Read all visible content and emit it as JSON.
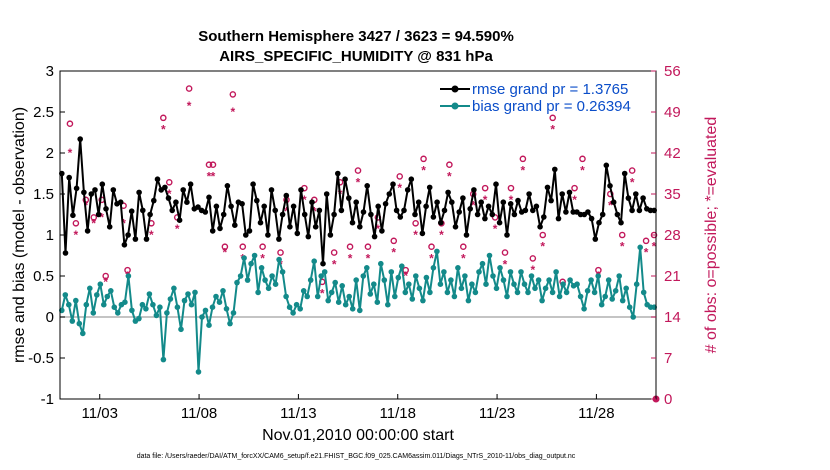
{
  "chart_data": {
    "type": "line",
    "title": "Southern Hemisphere 3427 / 3623 = 94.590%",
    "subtitle": "AIRS_SPECIFIC_HUMIDITY @ 831 hPa",
    "xlabel": "Nov.01,2010 00:00:00 start",
    "ylabel": "rmse and bias (model - observation)",
    "ylabel_right": "# of obs: o=possible; *=evaluated",
    "footnote": "data file: /Users/raeder/DAI/ATM_forcXX/CAM6_setup/f.e21.FHIST_BGC.f09_025.CAM6assim.011/Diags_NTrS_2010-11/obs_diag_output.nc",
    "x_tick_labels": [
      "11/03",
      "11/08",
      "11/13",
      "11/18",
      "11/23",
      "11/28"
    ],
    "x_tick_days": [
      3,
      8,
      13,
      18,
      23,
      28
    ],
    "xlim": [
      1,
      31
    ],
    "ylim": [
      -1,
      3
    ],
    "y_ticks": [
      -1,
      -0.5,
      0,
      0.5,
      1,
      1.5,
      2,
      2.5,
      3
    ],
    "y_tick_labels": [
      "-1",
      "-0.5",
      "0",
      "0.5",
      "1",
      "1.5",
      "2",
      "2.5",
      "3"
    ],
    "ylim_right": [
      0,
      56
    ],
    "y_ticks_right": [
      0,
      7,
      14,
      21,
      28,
      35,
      42,
      49,
      56
    ],
    "y_tick_labels_right": [
      "0",
      "7",
      "14",
      "21",
      "28",
      "35",
      "42",
      "49",
      "56"
    ],
    "legend_position": "top-right",
    "colors": {
      "rmse": "#000000",
      "bias": "#138a8a",
      "obs": "#c2185b",
      "zero_line": "#b0b0b0"
    },
    "series": [
      {
        "name": "rmse grand pr = 1.3765",
        "values": [
          1.75,
          0.78,
          1.7,
          1.24,
          1.57,
          2.17,
          1.52,
          1.05,
          1.5,
          1.55,
          1.25,
          1.62,
          1.32,
          1.1,
          1.55,
          1.38,
          1.4,
          0.88,
          1.0,
          1.29,
          0.95,
          1.52,
          1.3,
          0.95,
          1.25,
          1.42,
          1.68,
          1.55,
          1.58,
          1.45,
          1.3,
          1.4,
          1.18,
          1.55,
          1.4,
          1.62,
          1.32,
          1.34,
          1.3,
          1.28,
          1.46,
          1.05,
          1.35,
          1.08,
          1.25,
          1.6,
          1.35,
          1.12,
          1.4,
          1.38,
          1.0,
          1.05,
          1.62,
          1.42,
          1.15,
          1.35,
          1.0,
          1.55,
          1.3,
          0.95,
          1.25,
          1.48,
          1.1,
          1.35,
          1.02,
          1.55,
          1.25,
          0.98,
          1.4,
          1.1,
          1.3,
          0.65,
          1.5,
          1.0,
          1.25,
          1.75,
          1.3,
          1.68,
          1.45,
          1.15,
          1.4,
          1.1,
          1.28,
          1.6,
          1.25,
          0.98,
          1.35,
          1.05,
          1.38,
          1.5,
          1.62,
          1.3,
          1.22,
          1.3,
          1.55,
          1.68,
          1.25,
          1.4,
          1.02,
          1.35,
          1.58,
          1.22,
          1.4,
          1.15,
          1.3,
          1.52,
          1.4,
          1.1,
          1.28,
          1.45,
          1.0,
          1.32,
          1.55,
          1.25,
          1.4,
          1.2,
          1.35,
          1.25,
          1.62,
          1.15,
          1.4,
          1.0,
          1.38,
          1.25,
          1.42,
          1.28,
          1.3,
          1.5,
          1.3,
          1.35,
          1.1,
          1.22,
          1.58,
          1.42,
          1.8,
          1.2,
          1.5,
          1.28,
          1.52,
          1.28,
          1.28,
          1.25,
          1.25,
          1.28,
          1.2,
          0.95,
          1.15,
          1.25,
          1.85,
          1.6,
          1.4,
          1.25,
          1.15,
          1.75,
          1.45,
          1.3,
          1.5,
          1.3,
          1.45,
          1.32,
          1.3,
          1.3
        ]
      },
      {
        "name": "bias grand pr = 0.26394",
        "values": [
          0.08,
          0.27,
          0.15,
          -0.05,
          0.2,
          -0.08,
          -0.2,
          0.15,
          0.35,
          0.05,
          0.27,
          0.4,
          0.15,
          0.25,
          0.32,
          0.12,
          0.05,
          0.15,
          0.18,
          0.5,
          0.08,
          -0.05,
          -0.02,
          0.15,
          0.1,
          0.28,
          0.15,
          0.02,
          0.12,
          -0.52,
          0.05,
          0.22,
          0.35,
          0.12,
          -0.15,
          0.2,
          0.28,
          0.15,
          0.3,
          -0.67,
          0.0,
          0.08,
          -0.1,
          0.12,
          0.25,
          0.18,
          0.32,
          0.1,
          -0.08,
          0.05,
          0.42,
          0.5,
          0.72,
          0.45,
          0.65,
          0.75,
          0.3,
          0.6,
          0.45,
          0.35,
          0.5,
          0.4,
          0.7,
          0.55,
          0.25,
          0.12,
          0.05,
          0.15,
          0.1,
          0.32,
          0.25,
          0.45,
          0.68,
          0.25,
          0.5,
          0.55,
          0.2,
          0.3,
          0.42,
          0.18,
          0.38,
          0.15,
          0.25,
          0.1,
          0.45,
          0.08,
          0.5,
          0.6,
          0.28,
          0.4,
          0.18,
          0.65,
          0.45,
          0.15,
          0.55,
          0.25,
          0.48,
          0.62,
          0.3,
          0.4,
          0.22,
          0.5,
          0.35,
          0.2,
          0.48,
          0.3,
          0.6,
          0.8,
          0.4,
          0.55,
          0.3,
          0.45,
          0.25,
          0.6,
          0.35,
          0.5,
          0.2,
          0.4,
          0.3,
          0.55,
          0.65,
          0.4,
          0.75,
          0.5,
          0.35,
          0.6,
          0.45,
          0.25,
          0.55,
          0.4,
          0.3,
          0.55,
          0.4,
          0.3,
          0.5,
          0.35,
          0.45,
          0.2,
          0.35,
          0.45,
          0.3,
          0.55,
          0.25,
          0.4,
          0.3,
          0.45,
          0.38,
          0.4,
          0.25,
          0.1,
          0.32,
          0.45,
          0.3,
          0.5,
          0.15,
          0.25,
          0.45,
          0.22,
          0.32,
          0.5,
          0.2,
          0.35,
          0.12,
          0.0,
          0.4,
          0.85,
          0.3,
          0.15,
          0.12,
          0.12
        ]
      }
    ],
    "obs_possible": [
      [
        1.5,
        47
      ],
      [
        1.8,
        30
      ],
      [
        2.3,
        34
      ],
      [
        2.7,
        31
      ],
      [
        3.1,
        34
      ],
      [
        3.3,
        21
      ],
      [
        4.2,
        33
      ],
      [
        4.4,
        22
      ],
      [
        5.6,
        30
      ],
      [
        6.2,
        48
      ],
      [
        6.5,
        37
      ],
      [
        6.9,
        31
      ],
      [
        7.5,
        53
      ],
      [
        8.5,
        40
      ],
      [
        8.7,
        40
      ],
      [
        9.3,
        26
      ],
      [
        9.7,
        52
      ],
      [
        10.2,
        26
      ],
      [
        11.2,
        26
      ],
      [
        12.1,
        25
      ],
      [
        12.4,
        34
      ],
      [
        13.3,
        36
      ],
      [
        13.8,
        34
      ],
      [
        14.2,
        20
      ],
      [
        14.8,
        25
      ],
      [
        15.1,
        37
      ],
      [
        15.6,
        26
      ],
      [
        16.0,
        39
      ],
      [
        16.5,
        26
      ],
      [
        17.0,
        31
      ],
      [
        17.8,
        27
      ],
      [
        18.1,
        38
      ],
      [
        18.4,
        22
      ],
      [
        18.9,
        30
      ],
      [
        19.3,
        41
      ],
      [
        19.7,
        26
      ],
      [
        20.2,
        30
      ],
      [
        20.6,
        40
      ],
      [
        21.3,
        26
      ],
      [
        21.8,
        35
      ],
      [
        22.4,
        36
      ],
      [
        22.9,
        31
      ],
      [
        23.4,
        25
      ],
      [
        23.7,
        36
      ],
      [
        24.3,
        41
      ],
      [
        24.8,
        24
      ],
      [
        25.3,
        28
      ],
      [
        25.8,
        48
      ],
      [
        26.3,
        20
      ],
      [
        26.9,
        36
      ],
      [
        27.3,
        41
      ],
      [
        28.1,
        22
      ],
      [
        28.7,
        35
      ],
      [
        29.3,
        28
      ],
      [
        29.8,
        39
      ],
      [
        30.5,
        27
      ],
      [
        30.9,
        28
      ]
    ],
    "obs_evaluated": [
      [
        1.5,
        42
      ],
      [
        1.8,
        28
      ],
      [
        2.3,
        33
      ],
      [
        2.7,
        30
      ],
      [
        3.1,
        31
      ],
      [
        3.3,
        20
      ],
      [
        4.2,
        30
      ],
      [
        4.4,
        21
      ],
      [
        5.6,
        28
      ],
      [
        6.2,
        46
      ],
      [
        6.5,
        35
      ],
      [
        6.9,
        29
      ],
      [
        7.5,
        50
      ],
      [
        8.5,
        38
      ],
      [
        8.7,
        38
      ],
      [
        9.3,
        25
      ],
      [
        9.7,
        49
      ],
      [
        10.2,
        24
      ],
      [
        11.2,
        24
      ],
      [
        12.1,
        23
      ],
      [
        12.4,
        32
      ],
      [
        13.3,
        34
      ],
      [
        13.8,
        32
      ],
      [
        14.2,
        18
      ],
      [
        14.8,
        23
      ],
      [
        15.1,
        35
      ],
      [
        15.6,
        24
      ],
      [
        16.0,
        37
      ],
      [
        16.5,
        24
      ],
      [
        17.0,
        29
      ],
      [
        17.8,
        25
      ],
      [
        18.1,
        36
      ],
      [
        18.4,
        21
      ],
      [
        18.9,
        28
      ],
      [
        19.3,
        39
      ],
      [
        19.7,
        24
      ],
      [
        20.2,
        28
      ],
      [
        20.6,
        38
      ],
      [
        21.3,
        24
      ],
      [
        21.8,
        33
      ],
      [
        22.4,
        34
      ],
      [
        22.9,
        29
      ],
      [
        23.4,
        23
      ],
      [
        23.7,
        34
      ],
      [
        24.3,
        39
      ],
      [
        24.8,
        22
      ],
      [
        25.3,
        26
      ],
      [
        25.8,
        46
      ],
      [
        26.3,
        19
      ],
      [
        26.9,
        34
      ],
      [
        27.3,
        39
      ],
      [
        28.1,
        21
      ],
      [
        28.7,
        33
      ],
      [
        29.3,
        26
      ],
      [
        29.8,
        37
      ],
      [
        30.5,
        25
      ],
      [
        30.9,
        26
      ]
    ]
  }
}
